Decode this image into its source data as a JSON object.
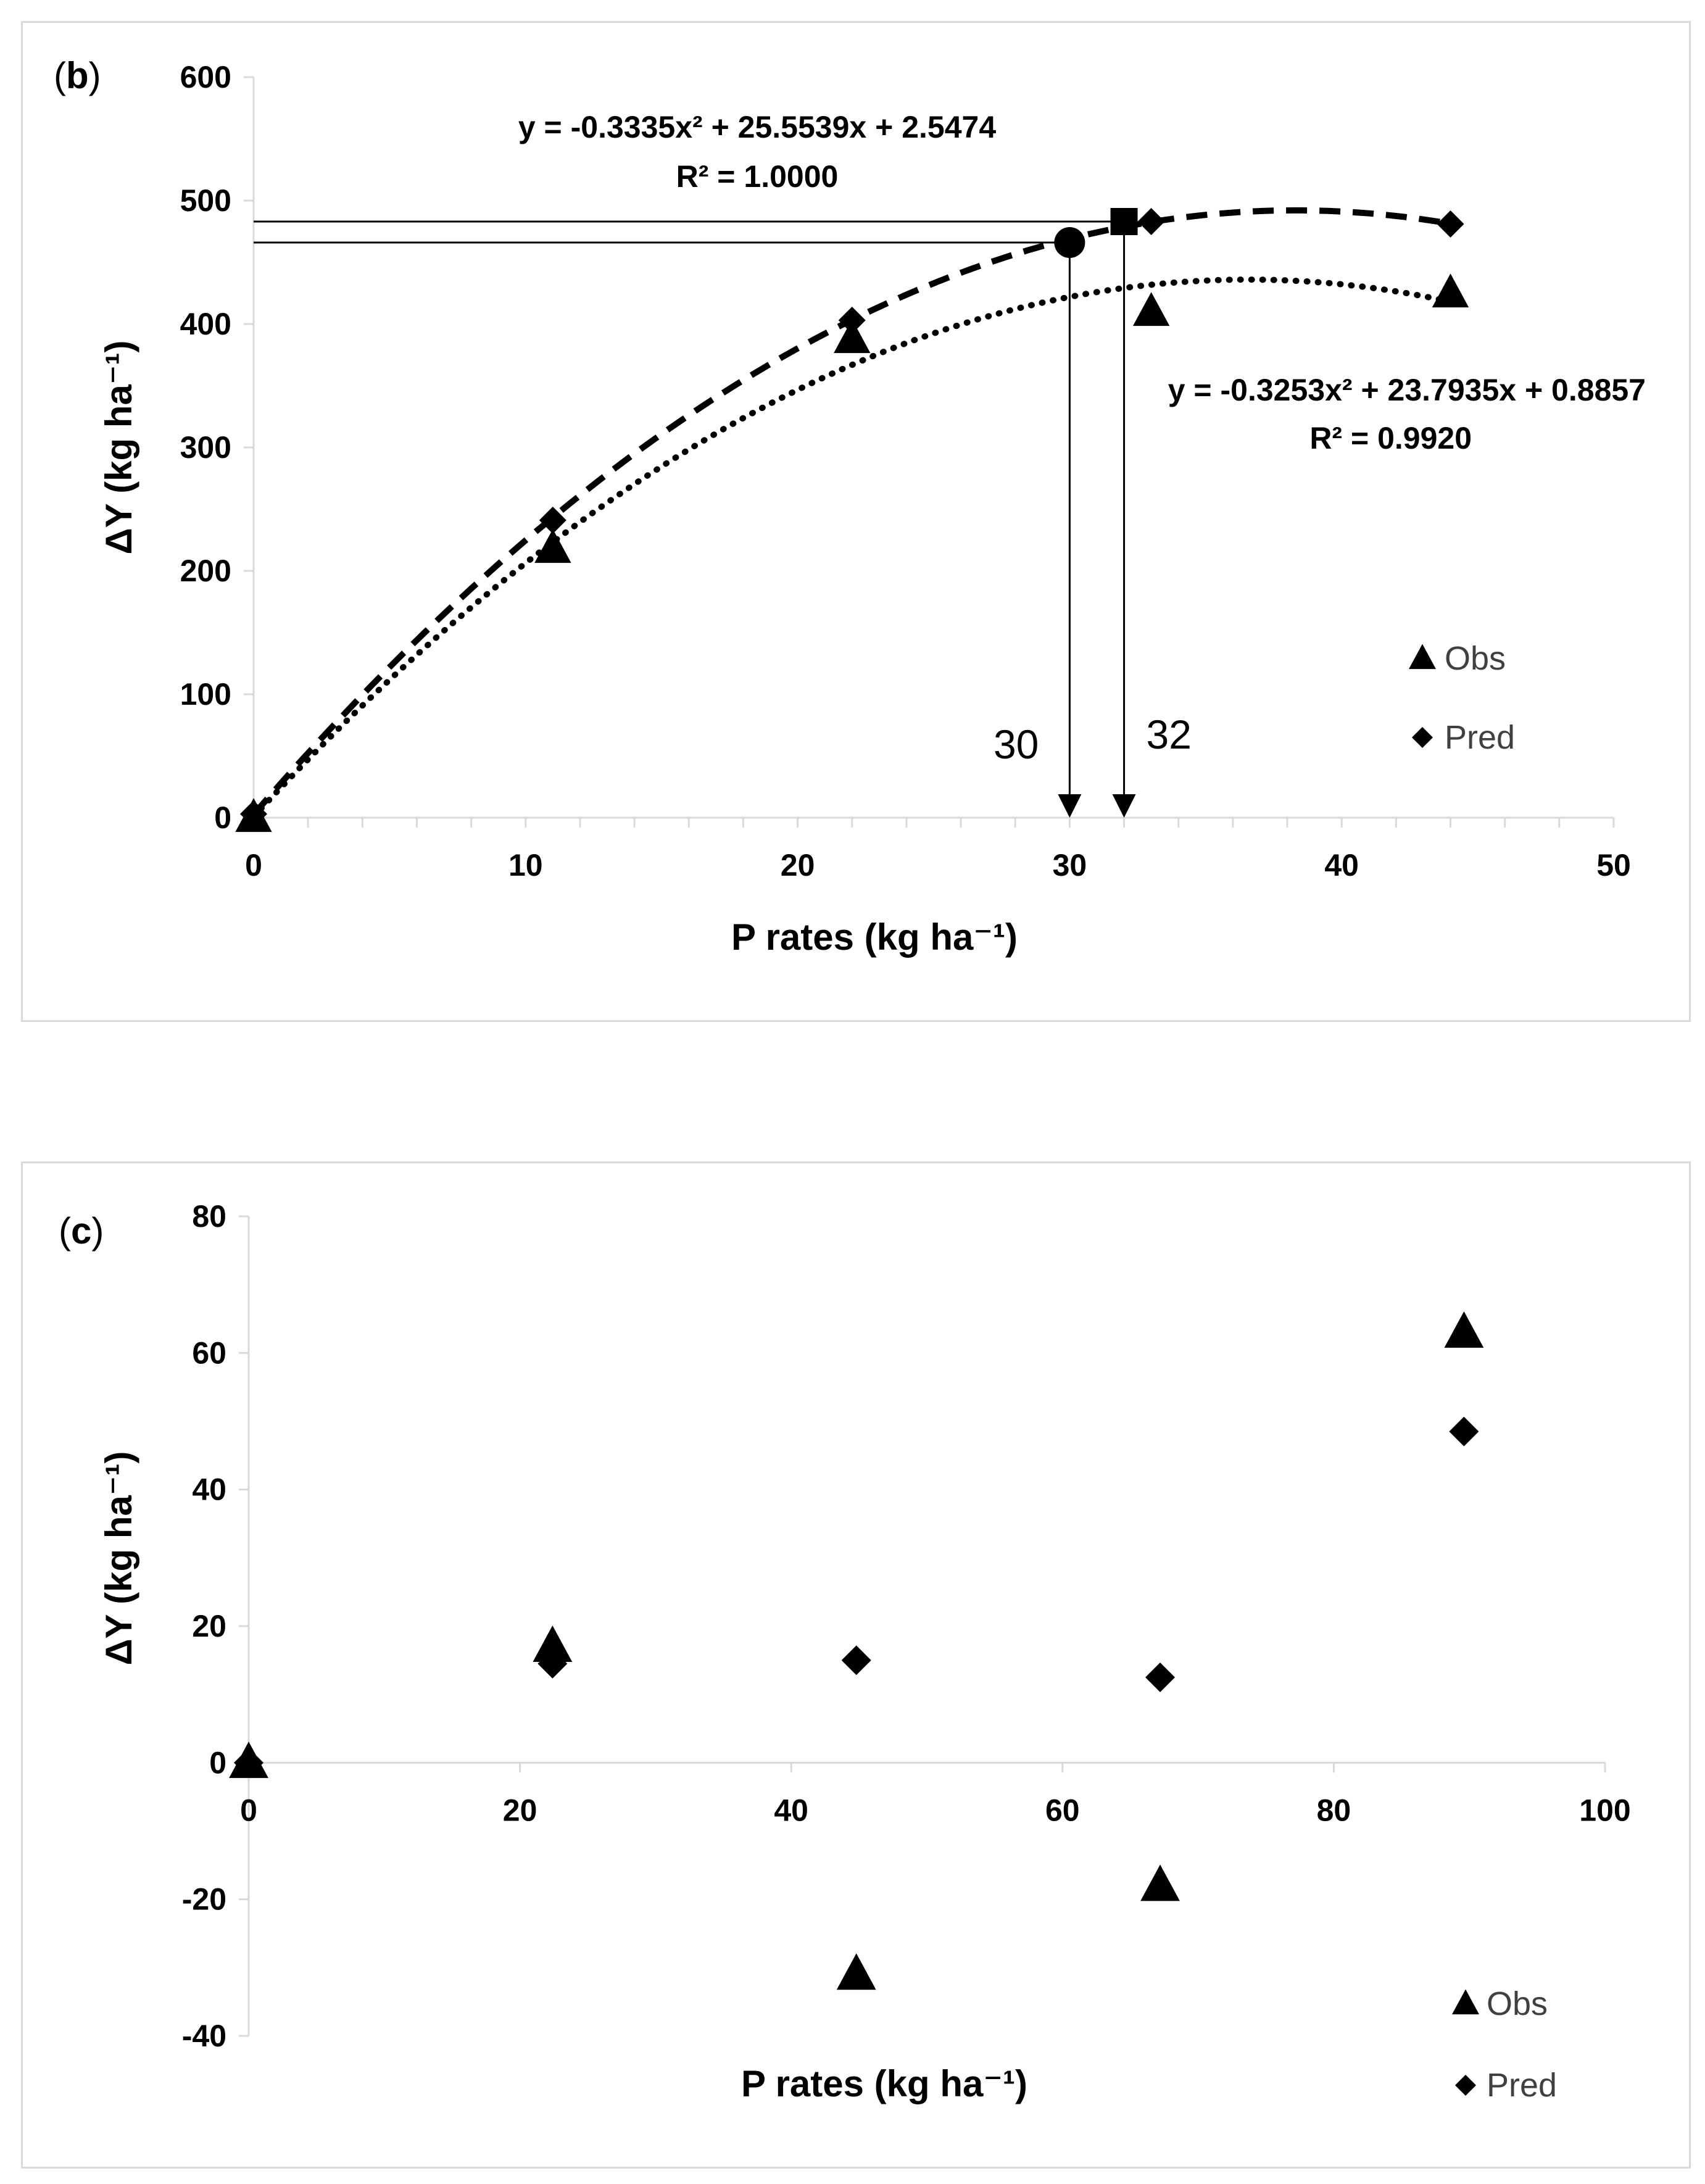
{
  "chart_data": [
    {
      "id": "b",
      "type": "scatter",
      "panel_label": "b",
      "xlabel": "P rates (kg ha⁻¹)",
      "ylabel": "ΔY (kg ha⁻¹)",
      "xlim": [
        0,
        50
      ],
      "ylim": [
        0,
        600
      ],
      "xticks": [
        0,
        10,
        20,
        30,
        40,
        50
      ],
      "yticks": [
        0,
        100,
        200,
        300,
        400,
        500,
        600
      ],
      "series": [
        {
          "name": "Obs",
          "marker": "triangle",
          "x": [
            0,
            11,
            22,
            33,
            44
          ],
          "y": [
            0,
            218,
            388,
            410,
            425
          ]
        },
        {
          "name": "Pred",
          "marker": "diamond",
          "x": [
            0,
            11,
            22,
            33,
            44
          ],
          "y": [
            3,
            241,
            403,
            483,
            481
          ]
        }
      ],
      "trendlines": [
        {
          "series": "Pred",
          "style": "dashed",
          "a": -0.3335,
          "b": 25.5539,
          "c": 2.5474,
          "equation": "y = -0.3335x² + 25.5539x + 2.5474",
          "r2": "R² = 1.0000"
        },
        {
          "series": "Obs",
          "style": "dotted",
          "a": -0.3253,
          "b": 23.7935,
          "c": 0.8857,
          "equation": "y = -0.3253x² + 23.7935x + 0.8857",
          "r2": "R² = 0.9920"
        }
      ],
      "annotations": [
        {
          "name": "optimum-obs",
          "marker": "circle",
          "x": 30,
          "y": 466,
          "label": "30"
        },
        {
          "name": "optimum-pred",
          "marker": "square",
          "x": 32,
          "y": 483,
          "label": "32"
        }
      ],
      "legend": [
        "Obs",
        "Pred"
      ]
    },
    {
      "id": "c",
      "type": "scatter",
      "panel_label": "c",
      "xlabel": "P rates (kg ha⁻¹)",
      "ylabel": "ΔY (kg ha⁻¹)",
      "xlim": [
        0,
        100
      ],
      "ylim": [
        -40,
        80
      ],
      "xticks": [
        0,
        20,
        40,
        60,
        80,
        100
      ],
      "yticks": [
        -40,
        -20,
        0,
        20,
        40,
        60,
        80
      ],
      "series": [
        {
          "name": "Obs",
          "marker": "triangle",
          "x": [
            0,
            22.4,
            44.8,
            67.2,
            89.6
          ],
          "y": [
            0,
            17,
            -31,
            -18,
            63
          ]
        },
        {
          "name": "Pred",
          "marker": "diamond",
          "x": [
            0,
            22.4,
            44.8,
            67.2,
            89.6
          ],
          "y": [
            0,
            14.5,
            15,
            12.5,
            48.5
          ]
        }
      ],
      "legend": [
        "Obs",
        "Pred"
      ]
    }
  ]
}
